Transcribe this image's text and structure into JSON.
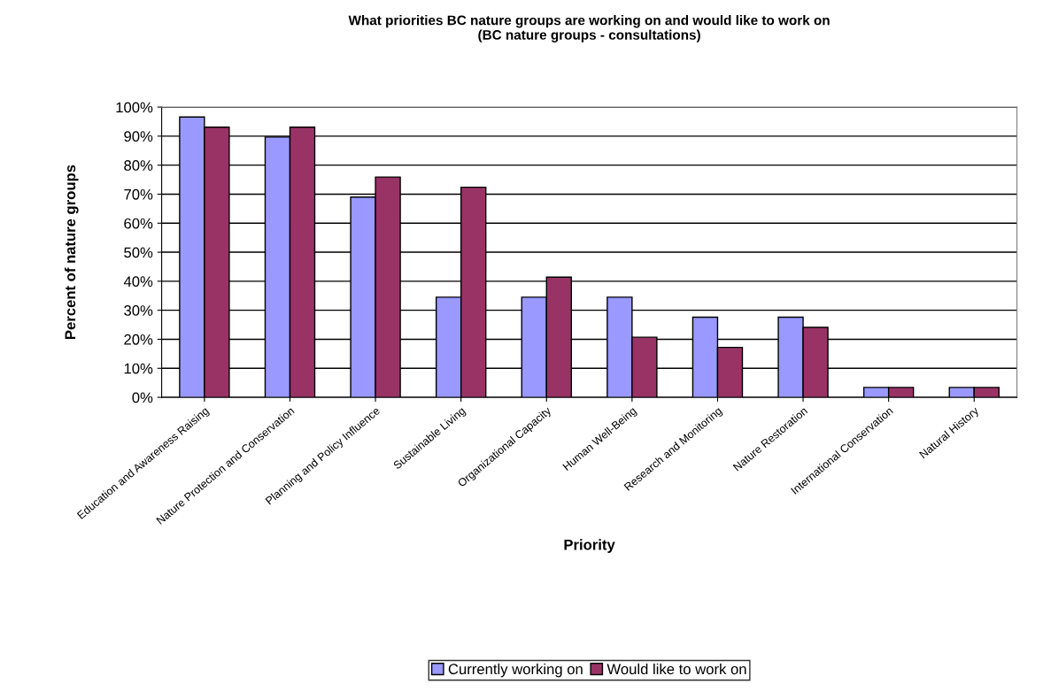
{
  "chart_data": {
    "type": "bar",
    "title": "What priorities BC nature groups are working on and would like to work on\n(BC nature groups - consultations)",
    "xlabel": "Priority",
    "ylabel": "Percent of nature groups",
    "categories": [
      "Education and Awareness Raising",
      "Nature Protection and Conservation",
      "Planning and Policy Influence",
      "Sustainable Living",
      "Organizational Capacity",
      "Human Well-Being",
      "Research and Monitoring",
      "Nature Restoration",
      "International Conservation",
      "Natural History"
    ],
    "series": [
      {
        "name": "Currently working on",
        "color": "#9999ff",
        "values": [
          96.6,
          89.7,
          69.0,
          34.5,
          34.5,
          34.5,
          27.6,
          27.6,
          3.4,
          3.4
        ]
      },
      {
        "name": "Would like to work on",
        "color": "#993366",
        "values": [
          93.1,
          93.1,
          75.9,
          72.4,
          41.4,
          20.7,
          17.2,
          24.1,
          3.4,
          3.4
        ]
      }
    ],
    "ylim": [
      0,
      100
    ],
    "yticks": [
      {
        "value": 0,
        "label": "0%"
      },
      {
        "value": 10,
        "label": "10%"
      },
      {
        "value": 20,
        "label": "20%"
      },
      {
        "value": 30,
        "label": "30%"
      },
      {
        "value": 40,
        "label": "40%"
      },
      {
        "value": 50,
        "label": "50%"
      },
      {
        "value": 60,
        "label": "60%"
      },
      {
        "value": 70,
        "label": "70%"
      },
      {
        "value": 80,
        "label": "80%"
      },
      {
        "value": 90,
        "label": "90%"
      },
      {
        "value": 100,
        "label": "100%"
      }
    ],
    "grid": "y",
    "legend": "bottom"
  }
}
